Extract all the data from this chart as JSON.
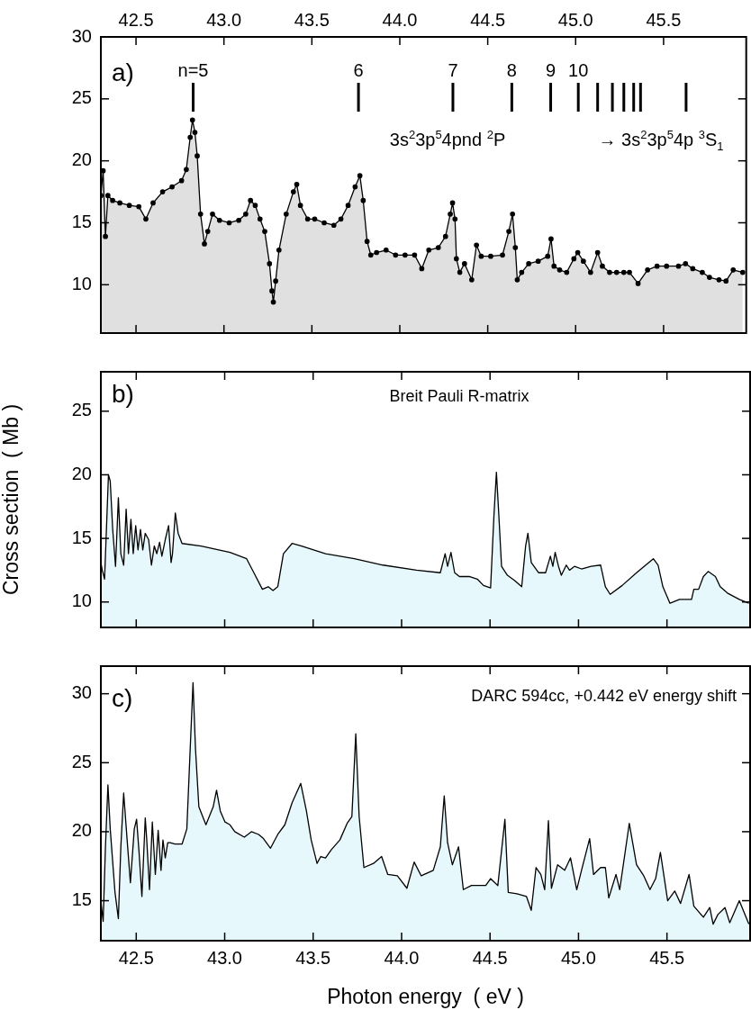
{
  "chart_data": [
    {
      "type": "area",
      "marker": "circle",
      "tick_labels": "y",
      "xlim": [
        42.3,
        45.97
      ],
      "xticks": [
        42.5,
        43,
        43.5,
        44,
        44.5,
        45,
        45.5
      ],
      "x2lim": [
        42.3,
        45.97
      ],
      "x2ticks": [
        42.5,
        {
          "value": 43,
          "label": "43.0"
        },
        43.5,
        {
          "value": 44,
          "label": "44.0"
        },
        44.5,
        {
          "value": 45,
          "label": "45.0"
        },
        45.5
      ],
      "ylim": [
        6.1,
        30
      ],
      "yticks": [
        10,
        15,
        20,
        25,
        30
      ],
      "annotations": [
        "a)",
        "3s$^{2}$3p$^{5}$4pnd $^{2}$P",
        "→ 3s$^{2}$3p$^{5}$4p $^{3}$S$_{1}$",
        "n=5",
        "6",
        "7",
        "8",
        "9",
        "10"
      ],
      "ref_lines": [
        {
          "axis": "x",
          "value": 42.825
        },
        {
          "axis": "x",
          "value": 43.765
        },
        {
          "axis": "x",
          "value": 44.302
        },
        {
          "axis": "x",
          "value": 44.637
        },
        {
          "axis": "x",
          "value": 44.858
        },
        {
          "axis": "x",
          "value": 45.015
        },
        {
          "axis": "x",
          "value": 45.125
        },
        {
          "axis": "x",
          "value": 45.209
        },
        {
          "axis": "x",
          "value": 45.274
        },
        {
          "axis": "x",
          "value": 45.33
        },
        {
          "axis": "x",
          "value": 45.369
        },
        {
          "axis": "x",
          "value": 45.628
        }
      ],
      "series": [
        {
          "color": "#e0e0e0",
          "x": [
            42.3,
            42.313,
            42.326,
            42.34,
            42.367,
            42.408,
            42.462,
            42.516,
            42.556,
            42.597,
            42.651,
            42.705,
            42.759,
            42.786,
            42.808,
            42.821,
            42.835,
            42.848,
            42.867,
            42.889,
            42.908,
            42.935,
            42.975,
            43.03,
            43.084,
            43.124,
            43.151,
            43.178,
            43.205,
            43.232,
            43.259,
            43.273,
            43.281,
            43.294,
            43.313,
            43.354,
            43.395,
            43.414,
            43.435,
            43.476,
            43.516,
            43.57,
            43.625,
            43.665,
            43.706,
            43.746,
            43.773,
            43.792,
            43.814,
            43.835,
            43.868,
            43.922,
            43.976,
            44.03,
            44.084,
            44.125,
            44.165,
            44.219,
            44.26,
            44.287,
            44.3,
            44.314,
            44.322,
            44.341,
            44.368,
            44.409,
            44.436,
            44.463,
            44.517,
            44.584,
            44.62,
            44.641,
            44.657,
            44.668,
            44.693,
            44.733,
            44.787,
            44.841,
            44.86,
            44.877,
            44.909,
            44.949,
            44.99,
            45.012,
            45.044,
            45.085,
            45.125,
            45.152,
            45.193,
            45.233,
            45.274,
            45.306,
            45.355,
            45.409,
            45.463,
            45.517,
            45.585,
            45.625,
            45.666,
            45.72,
            45.761,
            45.815,
            45.855,
            45.896,
            45.95
          ],
          "values": [
            17.2,
            19.2,
            13.9,
            17.2,
            16.8,
            16.6,
            16.4,
            16.3,
            15.3,
            16.6,
            17.5,
            17.9,
            18.4,
            19.3,
            21.9,
            23.3,
            22.3,
            20.4,
            15.7,
            13.3,
            14.3,
            15.7,
            15.2,
            15.0,
            15.2,
            15.7,
            16.8,
            16.4,
            15.3,
            14.3,
            11.7,
            9.5,
            8.6,
            10.3,
            12.8,
            15.7,
            17.5,
            18.1,
            16.4,
            15.3,
            15.3,
            15.0,
            14.8,
            15.3,
            16.4,
            17.9,
            18.8,
            16.8,
            13.5,
            12.4,
            12.6,
            12.8,
            12.4,
            12.4,
            12.4,
            11.3,
            12.8,
            13.0,
            13.9,
            15.7,
            16.6,
            15.3,
            12.1,
            11.0,
            11.7,
            10.4,
            13.2,
            12.3,
            12.3,
            12.4,
            14.3,
            15.7,
            13.0,
            10.4,
            11.0,
            11.7,
            11.9,
            12.3,
            13.7,
            11.5,
            11.2,
            11.0,
            12.1,
            12.6,
            11.9,
            11.0,
            12.6,
            11.5,
            11.0,
            11.0,
            11.0,
            11.0,
            10.1,
            11.2,
            11.5,
            11.5,
            11.5,
            11.7,
            11.3,
            11.0,
            10.6,
            10.4,
            10.3,
            11.2,
            11.0
          ]
        }
      ]
    },
    {
      "type": "area",
      "tick_labels": "y",
      "ylabel": "Cross section  ( Mb )",
      "xlim": [
        42.3,
        45.97
      ],
      "xticks": [
        42.5,
        43,
        43.5,
        44,
        44.5,
        45,
        45.5
      ],
      "ylim": [
        8,
        28.1
      ],
      "yticks": [
        10,
        15,
        20,
        25
      ],
      "annotations": [
        "b)",
        "Breit Pauli R-matrix"
      ],
      "series": [
        {
          "color": "#e6f8fc",
          "x": [
            42.3,
            42.308,
            42.321,
            42.335,
            42.343,
            42.353,
            42.367,
            42.383,
            42.399,
            42.413,
            42.429,
            42.443,
            42.456,
            42.47,
            42.483,
            42.497,
            42.51,
            42.524,
            42.537,
            42.551,
            42.57,
            42.586,
            42.602,
            42.616,
            42.632,
            42.645,
            42.664,
            42.683,
            42.697,
            42.705,
            42.721,
            42.737,
            42.759,
            42.867,
            43.03,
            43.124,
            43.165,
            43.213,
            43.246,
            43.273,
            43.3,
            43.332,
            43.381,
            43.435,
            43.57,
            43.733,
            43.895,
            44.084,
            44.219,
            44.246,
            44.26,
            44.279,
            44.3,
            44.327,
            44.382,
            44.428,
            44.463,
            44.503,
            44.522,
            44.536,
            44.549,
            44.565,
            44.598,
            44.638,
            44.679,
            44.701,
            44.714,
            44.733,
            44.774,
            44.814,
            44.841,
            44.855,
            44.868,
            44.887,
            44.903,
            44.931,
            44.949,
            44.977,
            45.017,
            45.071,
            45.125,
            45.152,
            45.179,
            45.247,
            45.328,
            45.423,
            45.45,
            45.477,
            45.517,
            45.571,
            45.639,
            45.652,
            45.679,
            45.706,
            45.733,
            45.774,
            45.801,
            45.842,
            45.909,
            45.963
          ],
          "values": [
            13.1,
            12.5,
            11.8,
            17.0,
            20.0,
            19.5,
            15.7,
            12.8,
            18.2,
            13.8,
            12.9,
            17.3,
            13.8,
            16.5,
            13.8,
            16.0,
            14.1,
            15.7,
            14.1,
            15.4,
            14.9,
            12.9,
            14.4,
            13.8,
            14.7,
            13.6,
            14.9,
            16.0,
            13.1,
            13.8,
            17.0,
            15.4,
            14.6,
            14.4,
            13.9,
            13.4,
            12.3,
            11.0,
            11.2,
            10.9,
            11.2,
            13.8,
            14.6,
            14.4,
            13.8,
            13.4,
            12.9,
            12.5,
            12.3,
            13.8,
            12.8,
            13.9,
            12.3,
            12.0,
            12.0,
            11.8,
            11.3,
            11.1,
            16.8,
            20.2,
            17.0,
            12.8,
            12.1,
            11.7,
            11.2,
            14.4,
            15.4,
            13.1,
            12.3,
            12.3,
            13.6,
            12.8,
            13.9,
            12.8,
            12.1,
            12.9,
            12.5,
            12.8,
            12.6,
            12.8,
            12.9,
            11.2,
            10.6,
            11.3,
            12.3,
            13.4,
            12.9,
            11.2,
            9.9,
            10.2,
            10.2,
            11.0,
            11.0,
            12.0,
            12.4,
            12.0,
            11.2,
            10.7,
            10.2,
            9.9
          ]
        }
      ]
    },
    {
      "type": "area",
      "xlabel": "Photon energy  ( eV )",
      "xlim": [
        42.3,
        45.97
      ],
      "xticks": [
        42.5,
        {
          "value": 43,
          "label": "43.0"
        },
        43.5,
        {
          "value": 44,
          "label": "44.0"
        },
        44.5,
        {
          "value": 45,
          "label": "45.0"
        },
        45.5
      ],
      "ylim": [
        12.1,
        32
      ],
      "yticks": [
        15,
        20,
        25,
        30
      ],
      "annotations": [
        "c)",
        "DARC 594cc, +0.442 eV energy shift"
      ],
      "series": [
        {
          "color": "#e6f8fc",
          "x": [
            42.3,
            42.313,
            42.326,
            42.34,
            42.353,
            42.38,
            42.399,
            42.413,
            42.429,
            42.448,
            42.467,
            42.489,
            42.502,
            42.516,
            42.532,
            42.551,
            42.559,
            42.575,
            42.591,
            42.608,
            42.624,
            42.64,
            42.651,
            42.664,
            42.678,
            42.692,
            42.719,
            42.759,
            42.786,
            42.805,
            42.821,
            42.835,
            42.854,
            42.894,
            42.935,
            42.954,
            42.975,
            43.002,
            43.03,
            43.057,
            43.111,
            43.151,
            43.192,
            43.219,
            43.259,
            43.3,
            43.34,
            43.381,
            43.43,
            43.462,
            43.489,
            43.522,
            43.543,
            43.57,
            43.603,
            43.651,
            43.692,
            43.719,
            43.741,
            43.76,
            43.787,
            43.841,
            43.887,
            43.922,
            43.976,
            44.03,
            44.071,
            44.111,
            44.179,
            44.219,
            44.241,
            44.26,
            44.287,
            44.322,
            44.349,
            44.395,
            44.476,
            44.503,
            44.544,
            44.584,
            44.603,
            44.652,
            44.706,
            44.733,
            44.76,
            44.787,
            44.809,
            44.83,
            44.847,
            44.882,
            44.922,
            44.955,
            44.99,
            45.017,
            45.063,
            45.085,
            45.125,
            45.152,
            45.171,
            45.212,
            45.233,
            45.287,
            45.328,
            45.369,
            45.404,
            45.436,
            45.463,
            45.504,
            45.544,
            45.577,
            45.625,
            45.652,
            45.706,
            45.742,
            45.761,
            45.788,
            45.828,
            45.855,
            45.909,
            45.963
          ],
          "values": [
            15.0,
            13.5,
            18.9,
            23.4,
            20.2,
            15.6,
            13.7,
            18.9,
            22.8,
            19.5,
            16.3,
            20.2,
            20.9,
            18.5,
            15.3,
            21.0,
            19.5,
            15.8,
            20.7,
            16.9,
            20.1,
            17.2,
            19.4,
            18.1,
            19.2,
            19.2,
            19.1,
            19.1,
            20.2,
            26.0,
            30.8,
            26.0,
            21.8,
            20.5,
            21.8,
            23.0,
            21.5,
            20.7,
            20.5,
            20.0,
            19.6,
            20.0,
            19.8,
            19.5,
            18.8,
            19.8,
            20.5,
            22.1,
            23.5,
            21.5,
            19.4,
            17.7,
            18.2,
            18.1,
            18.7,
            19.4,
            20.6,
            21.1,
            27.1,
            21.1,
            17.4,
            17.7,
            18.2,
            16.9,
            16.8,
            15.9,
            17.8,
            16.8,
            17.2,
            18.9,
            22.6,
            19.2,
            17.6,
            18.9,
            15.8,
            16.1,
            16.1,
            16.6,
            16.1,
            20.9,
            15.6,
            15.5,
            15.3,
            14.3,
            17.4,
            16.9,
            15.8,
            20.8,
            15.9,
            17.6,
            17.2,
            18.1,
            15.8,
            17.2,
            19.5,
            16.9,
            17.4,
            17.4,
            15.2,
            16.9,
            15.8,
            20.6,
            17.6,
            16.8,
            15.8,
            16.6,
            18.5,
            15.0,
            15.7,
            14.8,
            16.9,
            14.6,
            13.8,
            14.5,
            13.3,
            14.0,
            14.5,
            13.4,
            15.0,
            13.3
          ]
        }
      ]
    }
  ]
}
